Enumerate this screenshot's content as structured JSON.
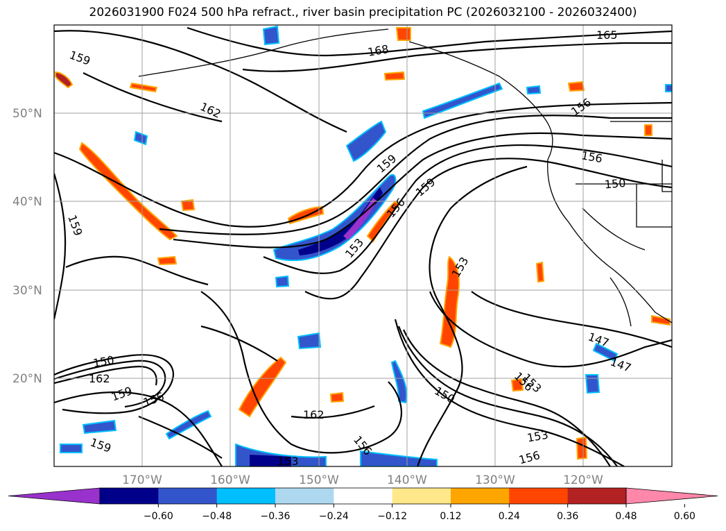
{
  "title": "2026031900 F024 500 hPa refract., river basin precipitation PC (2026032100 - 2026032400)",
  "axes": {
    "lat_ticks": [
      "50°N",
      "40°N",
      "30°N",
      "20°N"
    ],
    "lon_ticks": [
      "170°W",
      "160°W",
      "150°W",
      "140°W",
      "130°W",
      "120°W"
    ]
  },
  "contour_labels": [
    "168",
    "165",
    "162",
    "159",
    "156",
    "153",
    "150",
    "147"
  ],
  "colorbar": {
    "ticks": [
      "−0.60",
      "−0.48",
      "−0.36",
      "−0.24",
      "−0.12",
      "0.12",
      "0.24",
      "0.36",
      "0.48",
      "0.60"
    ],
    "colors": [
      "#9932cc",
      "#00008b",
      "#3355cc",
      "#00bfff",
      "#add8f0",
      "#ffffff",
      "#ffe88a",
      "#ffa500",
      "#ff4500",
      "#b22222",
      "#ff88aa"
    ]
  }
}
